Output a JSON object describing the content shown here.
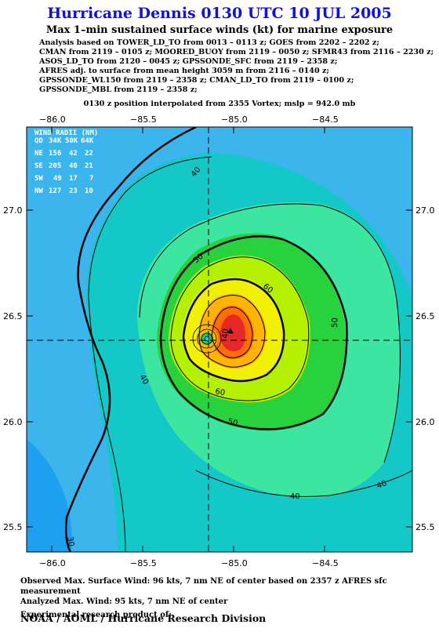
{
  "title": "Hurricane Dennis 0130 UTC 10 JUL 2005",
  "subtitle": "Max 1–min sustained surface winds (kt) for marine exposure",
  "analysis_lines": [
    "Analysis based on  TOWER_LD_TO from 0013 – 0113 z;  GOES from 2202 – 2202 z;",
    "CMAN from 2119 – 0105 z;  MOORED_BUOY from 2119 – 0050 z;  SFMR43 from 2116 – 2230 z;",
    "ASOS_LD_TO from 2120 – 0045 z;  GPSSONDE_SFC from 2119 – 2358 z;",
    "AFRES adj. to surface from mean height 3059 m from 2116 – 0140 z;",
    "GPSSONDE_WL150 from 2119 – 2358 z;  CMAN_LD_TO from 2119 – 0100 z;",
    "GPSSONDE_MBL from 2119 – 2358 z;"
  ],
  "position_line": "0130 z position interpolated from 2355 Vortex; mslp = 942.0 mb",
  "map": {
    "lon_ticks": [
      "−86.0",
      "−85.5",
      "−85.0",
      "−84.5"
    ],
    "lat_ticks": [
      "27.0",
      "26.5",
      "26.0",
      "25.5"
    ],
    "contour_labels": [
      "40",
      "50",
      "60",
      "40",
      "50",
      "60",
      "50",
      "40",
      "40",
      "30",
      "40"
    ],
    "center": {
      "lon": -85.1,
      "lat": 26.38
    },
    "max_wind_marker": "▲"
  },
  "wind_radii": {
    "header": "WIND RADII (NM)",
    "columns": [
      "QD",
      "34K",
      "50K",
      "64K"
    ],
    "rows": [
      [
        "NE",
        "156",
        "42",
        "22"
      ],
      [
        "SE",
        "205",
        "40",
        "21"
      ],
      [
        "SW",
        "49",
        "17",
        "7"
      ],
      [
        "NW",
        "127",
        "23",
        "10"
      ]
    ]
  },
  "footer": {
    "observed": "Observed Max. Surface Wind: 96 kts, 7 nm NE of center based on 2357 z AFRES sfc measurement",
    "analyzed": "Analyzed Max. Wind: 95 kts, 7 nm NE of center",
    "experimental": "Experimental research product of:",
    "org": "NOAA / AOML / Hurricane Research Division"
  },
  "colors": {
    "title": "#1010e0",
    "wind_30": "#1ea0f0",
    "wind_35": "#3cb4ec",
    "wind_40": "#14c8c8",
    "wind_45": "#3ce6a0",
    "wind_50": "#28d23c",
    "wind_55": "#b4f000",
    "wind_60": "#f0f000",
    "wind_70": "#ffb400",
    "wind_80": "#ff6e00",
    "wind_90": "#e62828"
  }
}
